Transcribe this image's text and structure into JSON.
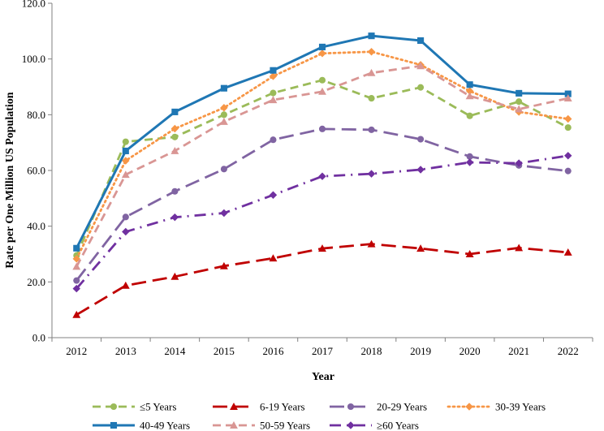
{
  "chart_data": {
    "type": "line",
    "title": "",
    "xlabel": "Year",
    "ylabel": "Rate per One Million US Population",
    "x": [
      "2012",
      "2013",
      "2014",
      "2015",
      "2016",
      "2017",
      "2018",
      "2019",
      "2020",
      "2021",
      "2022"
    ],
    "ylim": [
      0,
      120
    ],
    "yticks": [
      "0.0",
      "20.0",
      "40.0",
      "60.0",
      "80.0",
      "100.0",
      "120.0"
    ],
    "grid": false,
    "legend_position": "bottom",
    "series": [
      {
        "name": "≤5 Years",
        "color": "#9BBB59",
        "marker": "circle",
        "dash": "dashed",
        "values": [
          29.5,
          70.3,
          72.0,
          80.0,
          87.8,
          92.4,
          85.9,
          89.8,
          79.6,
          84.7,
          75.4
        ]
      },
      {
        "name": "6-19 Years",
        "color": "#C00000",
        "marker": "triangle",
        "dash": "longdash",
        "values": [
          8.2,
          18.7,
          21.9,
          25.7,
          28.5,
          32.0,
          33.6,
          32.0,
          30.0,
          32.2,
          30.6
        ]
      },
      {
        "name": "20-29 Years",
        "color": "#8064A2",
        "marker": "circle",
        "dash": "longdash",
        "values": [
          20.5,
          43.3,
          52.5,
          60.5,
          71.0,
          74.9,
          74.6,
          71.2,
          65.0,
          61.8,
          59.8
        ]
      },
      {
        "name": "30-39 Years",
        "color": "#F79646",
        "marker": "diamond",
        "dash": "dotted",
        "values": [
          28.3,
          63.5,
          75.0,
          82.5,
          93.8,
          102.0,
          102.6,
          97.9,
          88.5,
          81.0,
          78.5
        ]
      },
      {
        "name": "40-49 Years",
        "color": "#1F77B4",
        "marker": "square",
        "dash": "solid",
        "values": [
          32.1,
          67.0,
          81.0,
          89.5,
          95.9,
          104.3,
          108.3,
          106.6,
          90.8,
          87.7,
          87.5
        ]
      },
      {
        "name": "50-59 Years",
        "color": "#D99694",
        "marker": "triangle",
        "dash": "dashed",
        "values": [
          25.5,
          58.5,
          67.0,
          77.5,
          85.3,
          88.3,
          95.0,
          97.5,
          86.7,
          82.0,
          85.9
        ]
      },
      {
        "name": "≥60 Years",
        "color": "#7030A0",
        "marker": "diamond",
        "dash": "dashdot",
        "values": [
          17.6,
          38.0,
          43.2,
          44.7,
          51.2,
          57.9,
          58.8,
          60.3,
          62.9,
          62.6,
          65.3
        ]
      }
    ]
  }
}
